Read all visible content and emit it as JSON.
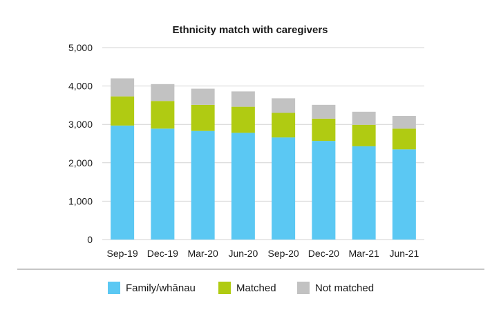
{
  "chart_data": {
    "type": "bar",
    "stacked": true,
    "title": "Ethnicity match with caregivers",
    "xlabel": "",
    "ylabel": "",
    "ylim": [
      0,
      5000
    ],
    "yticks": [
      0,
      1000,
      2000,
      3000,
      4000,
      5000
    ],
    "ytick_labels": [
      "0",
      "1,000",
      "2,000",
      "3,000",
      "4,000",
      "5,000"
    ],
    "grid": true,
    "legend_position": "bottom",
    "categories": [
      "Sep-19",
      "Dec-19",
      "Mar-20",
      "Jun-20",
      "Sep-20",
      "Dec-20",
      "Mar-21",
      "Jun-21"
    ],
    "series": [
      {
        "name": "Family/whānau",
        "color": "#5BC8F3",
        "values": [
          2970,
          2890,
          2830,
          2780,
          2660,
          2570,
          2430,
          2350
        ]
      },
      {
        "name": "Matched",
        "color": "#B0CB12",
        "values": [
          760,
          720,
          680,
          680,
          640,
          580,
          560,
          540
        ]
      },
      {
        "name": "Not matched",
        "color": "#C2C2C2",
        "values": [
          470,
          440,
          420,
          400,
          380,
          360,
          340,
          330
        ]
      }
    ]
  }
}
